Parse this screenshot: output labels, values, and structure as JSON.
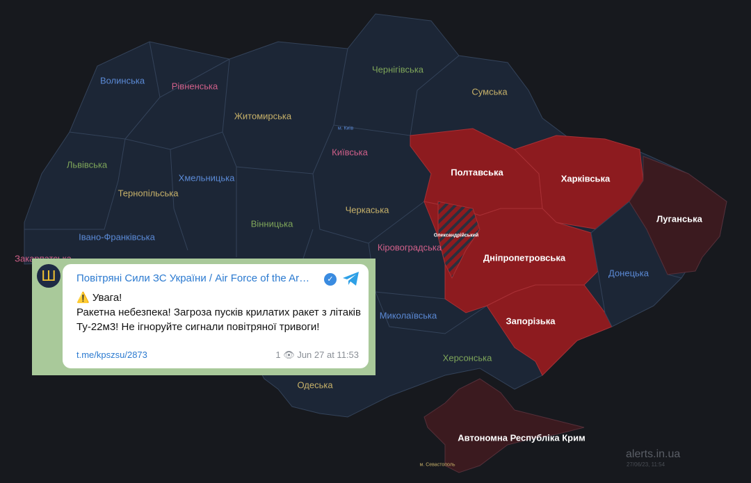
{
  "colors": {
    "background": "#17191e",
    "region": "#1c2636",
    "border": "#34435a",
    "alert": "#8d1b1f",
    "occupied": "#3b1a1f"
  },
  "map": {
    "regions": [
      {
        "name": "Волинська",
        "color": "#5b8ad6",
        "status": "none"
      },
      {
        "name": "Рівненська",
        "color": "#d0608a",
        "status": "none"
      },
      {
        "name": "Житомирська",
        "color": "#c8b26a",
        "status": "none"
      },
      {
        "name": "Чернігівська",
        "color": "#7fa65a",
        "status": "none"
      },
      {
        "name": "Сумська",
        "color": "#c8b26a",
        "status": "none"
      },
      {
        "name": "Львівська",
        "color": "#7fa65a",
        "status": "none"
      },
      {
        "name": "Тернопільська",
        "color": "#c8b26a",
        "status": "none"
      },
      {
        "name": "Хмельницька",
        "color": "#5b8ad6",
        "status": "none"
      },
      {
        "name": "Київська",
        "color": "#d0608a",
        "status": "none"
      },
      {
        "name": "м. Київ",
        "color": "#5b8ad6",
        "status": "none"
      },
      {
        "name": "Вінницька",
        "color": "#7fa65a",
        "status": "none"
      },
      {
        "name": "Черкаська",
        "color": "#c8b26a",
        "status": "none"
      },
      {
        "name": "Кіровоградська",
        "color": "#d0608a",
        "status": "none"
      },
      {
        "name": "Івано-Франківська",
        "color": "#5b8ad6",
        "status": "none"
      },
      {
        "name": "Закарпатська",
        "color": "#d0608a",
        "status": "none"
      },
      {
        "name": "Миколаївська",
        "color": "#5b8ad6",
        "status": "none"
      },
      {
        "name": "Херсонська",
        "color": "#7fa65a",
        "status": "none"
      },
      {
        "name": "Одеська",
        "color": "#c8b26a",
        "status": "none"
      },
      {
        "name": "Донецька",
        "color": "#5b8ad6",
        "status": "none"
      },
      {
        "name": "Полтавська",
        "color": "#ffffff",
        "status": "alert"
      },
      {
        "name": "Харківська",
        "color": "#ffffff",
        "status": "alert"
      },
      {
        "name": "Дніпропетровська",
        "color": "#ffffff",
        "status": "alert"
      },
      {
        "name": "Запорізька",
        "color": "#ffffff",
        "status": "alert"
      },
      {
        "name": "Луганська",
        "color": "#ffffff",
        "status": "occupied"
      },
      {
        "name": "Автономна Республіка Крим",
        "color": "#ffffff",
        "status": "occupied"
      },
      {
        "name": "Олександрійський",
        "color": "#ffffff",
        "status": "district-alert"
      },
      {
        "name": "м. Севастополь",
        "color": "#c8b26a",
        "status": "occupied"
      }
    ]
  },
  "post": {
    "avatar_icon": "trident-icon",
    "channel": "Повітряні Сили ЗС України / Air Force of the Ar…",
    "line1": "⚠️ Увага!",
    "line2": "Ракетна небезпека! Загроза пусків крилатих ракет з літаків Ту-22м3! Не ігноруйте сигнали повітряної тривоги!",
    "link": "t.me/kpszsu/2873",
    "views": "1",
    "time": "Jun 27 at 11:53"
  },
  "footer": {
    "brand": "alerts.in.ua",
    "timestamp": "27/06/23, 11:54"
  }
}
